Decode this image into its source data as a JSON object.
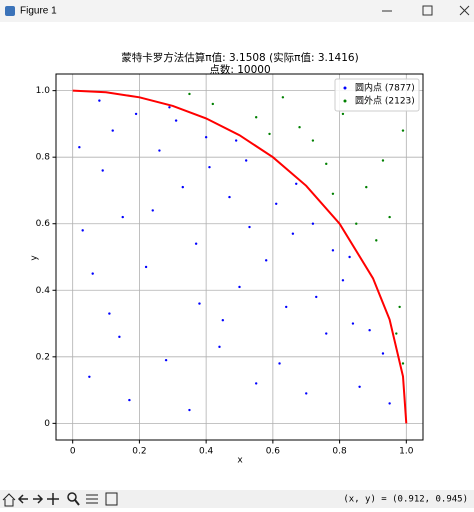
{
  "window": {
    "title": "Figure 1",
    "status": "(x, y) = (0.912, 0.945)"
  },
  "chart_data": {
    "type": "scatter",
    "title": [
      "蒙特卡罗方法估算π值: 3.1508 (实际π值: 3.1416)",
      "点数: 10000"
    ],
    "x_label": "x",
    "y_label": "y",
    "xlim": [
      -0.05,
      1.05
    ],
    "ylim": [
      -0.05,
      1.05
    ],
    "xticks": [
      0.0,
      0.2,
      0.4,
      0.6,
      0.8,
      {
        "value": 1,
        "label": "1.0"
      }
    ],
    "yticks": [
      0.0,
      0.2,
      0.4,
      0.6,
      0.8,
      {
        "value": 1,
        "label": "1.0"
      }
    ],
    "grid": true,
    "legend": "upper right",
    "series": [
      {
        "name": "圆内点 (7877)",
        "color": "#0000ff",
        "x": [
          0.12,
          0.45,
          0.78,
          0.33,
          0.05,
          0.61,
          0.22,
          0.89,
          0.4,
          0.15,
          0.7,
          0.52,
          0.28,
          0.08,
          0.93,
          0.37,
          0.64,
          0.19,
          0.81,
          0.55,
          0.03,
          0.47,
          0.72,
          0.26,
          0.11,
          0.58,
          0.35,
          0.86,
          0.44,
          0.67,
          0.09,
          0.31,
          0.76,
          0.5,
          0.17,
          0.62,
          0.24,
          0.83,
          0.41,
          0.06,
          0.53,
          0.73,
          0.14,
          0.38,
          0.95,
          0.29,
          0.66,
          0.02,
          0.49,
          0.84
        ],
        "values": [
          0.88,
          0.31,
          0.52,
          0.71,
          0.14,
          0.66,
          0.47,
          0.28,
          0.86,
          0.62,
          0.09,
          0.79,
          0.19,
          0.97,
          0.21,
          0.54,
          0.35,
          0.93,
          0.43,
          0.12,
          0.58,
          0.68,
          0.6,
          0.82,
          0.33,
          0.49,
          0.04,
          0.11,
          0.23,
          0.72,
          0.76,
          0.91,
          0.27,
          0.41,
          0.07,
          0.18,
          0.64,
          0.5,
          0.77,
          0.45,
          0.59,
          0.38,
          0.26,
          0.36,
          0.06,
          0.95,
          0.57,
          0.83,
          0.85,
          0.3
        ]
      },
      {
        "name": "圆外点 (2123)",
        "color": "#008000",
        "x": [
          0.95,
          0.72,
          0.88,
          0.55,
          0.98,
          0.81,
          0.63,
          0.91,
          0.76,
          0.99,
          0.42,
          0.85,
          0.97,
          0.68,
          0.93,
          0.59,
          0.89,
          0.99,
          0.78,
          0.35
        ],
        "values": [
          0.62,
          0.85,
          0.71,
          0.92,
          0.35,
          0.93,
          0.98,
          0.55,
          0.78,
          0.88,
          0.96,
          0.6,
          0.27,
          0.89,
          0.79,
          0.87,
          0.96,
          0.18,
          0.69,
          0.99
        ]
      },
      {
        "type": "line",
        "color": "#ff0000",
        "x": [
          0,
          0.1,
          0.2,
          0.3,
          0.4,
          0.5,
          0.6,
          0.7,
          0.8,
          0.9,
          0.95,
          0.99,
          1
        ],
        "values": [
          1,
          0.995,
          0.98,
          0.954,
          0.9165,
          0.866,
          0.8,
          0.714,
          0.6,
          0.4359,
          0.3122,
          0.141,
          0
        ]
      }
    ]
  }
}
